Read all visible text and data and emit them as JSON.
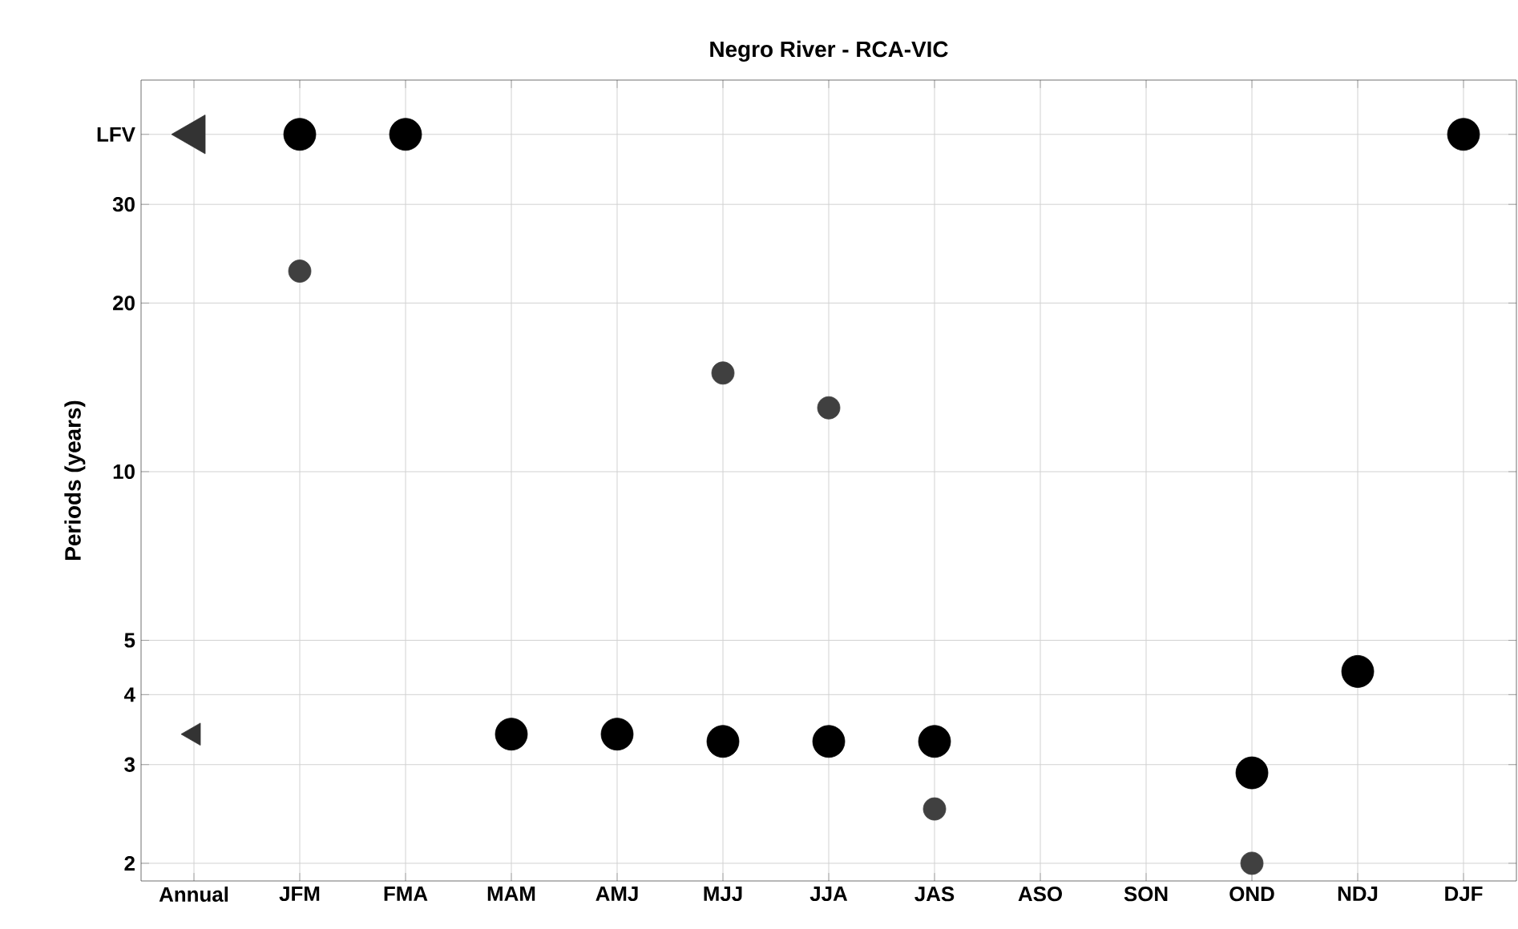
{
  "chart_data": {
    "type": "scatter",
    "title": "Negro River - RCA-VIC",
    "ylabel": "Periods (years)",
    "categories": [
      "Annual",
      "JFM",
      "FMA",
      "MAM",
      "AMJ",
      "MJJ",
      "JJA",
      "JAS",
      "ASO",
      "SON",
      "OND",
      "NDJ",
      "DJF"
    ],
    "log": "y",
    "ylim": [
      1.86,
      50
    ],
    "yticks": [
      2,
      3,
      4,
      5,
      10,
      20,
      30,
      {
        "value": 40,
        "label": "LFV"
      }
    ],
    "grid": true,
    "series": [
      {
        "color": "#000000",
        "marker": "circle",
        "values": [
          null,
          40,
          40,
          3.4,
          3.4,
          3.3,
          3.3,
          3.3,
          null,
          null,
          2.9,
          4.4,
          40
        ]
      },
      {
        "color": "#404040",
        "marker": "circle",
        "values": [
          null,
          22.8,
          null,
          null,
          null,
          15.0,
          13.0,
          2.5,
          null,
          null,
          2.0,
          null,
          null
        ]
      },
      {
        "color": "#333333",
        "marker": "triangle",
        "values": [
          40,
          null,
          null,
          null,
          null,
          null,
          null,
          null,
          null,
          null,
          null,
          null,
          null
        ]
      },
      {
        "color": "#333333",
        "marker": "triangle",
        "values": [
          3.4,
          null,
          null,
          null,
          null,
          null,
          null,
          null,
          null,
          null,
          null,
          null,
          null
        ]
      }
    ]
  }
}
